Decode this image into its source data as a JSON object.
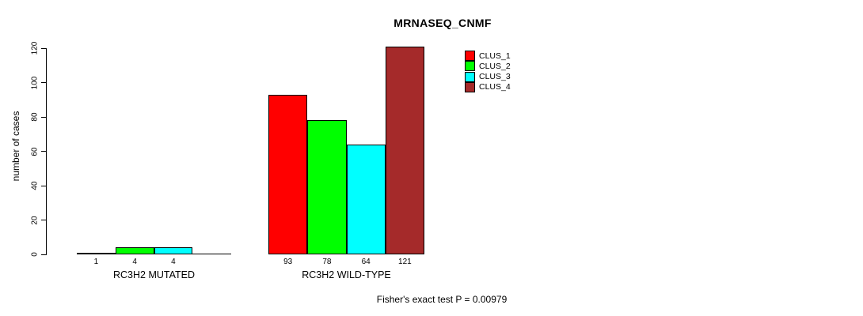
{
  "chart_data": {
    "type": "bar",
    "title": "MRNASEQ_CNMF",
    "ylabel": "number of cases",
    "xlabel": "",
    "ylim": [
      0,
      120
    ],
    "yticks": [
      0,
      20,
      40,
      60,
      80,
      100,
      120
    ],
    "grid": false,
    "legend_position": "top-right",
    "series": [
      {
        "name": "CLUS_1",
        "color": "#FF0000"
      },
      {
        "name": "CLUS_2",
        "color": "#00FF00"
      },
      {
        "name": "CLUS_3",
        "color": "#00FFFF"
      },
      {
        "name": "CLUS_4",
        "color": "#A52A2A"
      }
    ],
    "groups": [
      {
        "label": "RC3H2 MUTATED",
        "values": [
          1,
          4,
          4,
          0
        ],
        "value_labels": [
          "1",
          "4",
          "4",
          ""
        ]
      },
      {
        "label": "RC3H2 WILD-TYPE",
        "values": [
          93,
          78,
          64,
          121
        ],
        "value_labels": [
          "93",
          "78",
          "64",
          "121"
        ]
      }
    ],
    "annotation": "Fisher's exact test P = 0.00979"
  }
}
